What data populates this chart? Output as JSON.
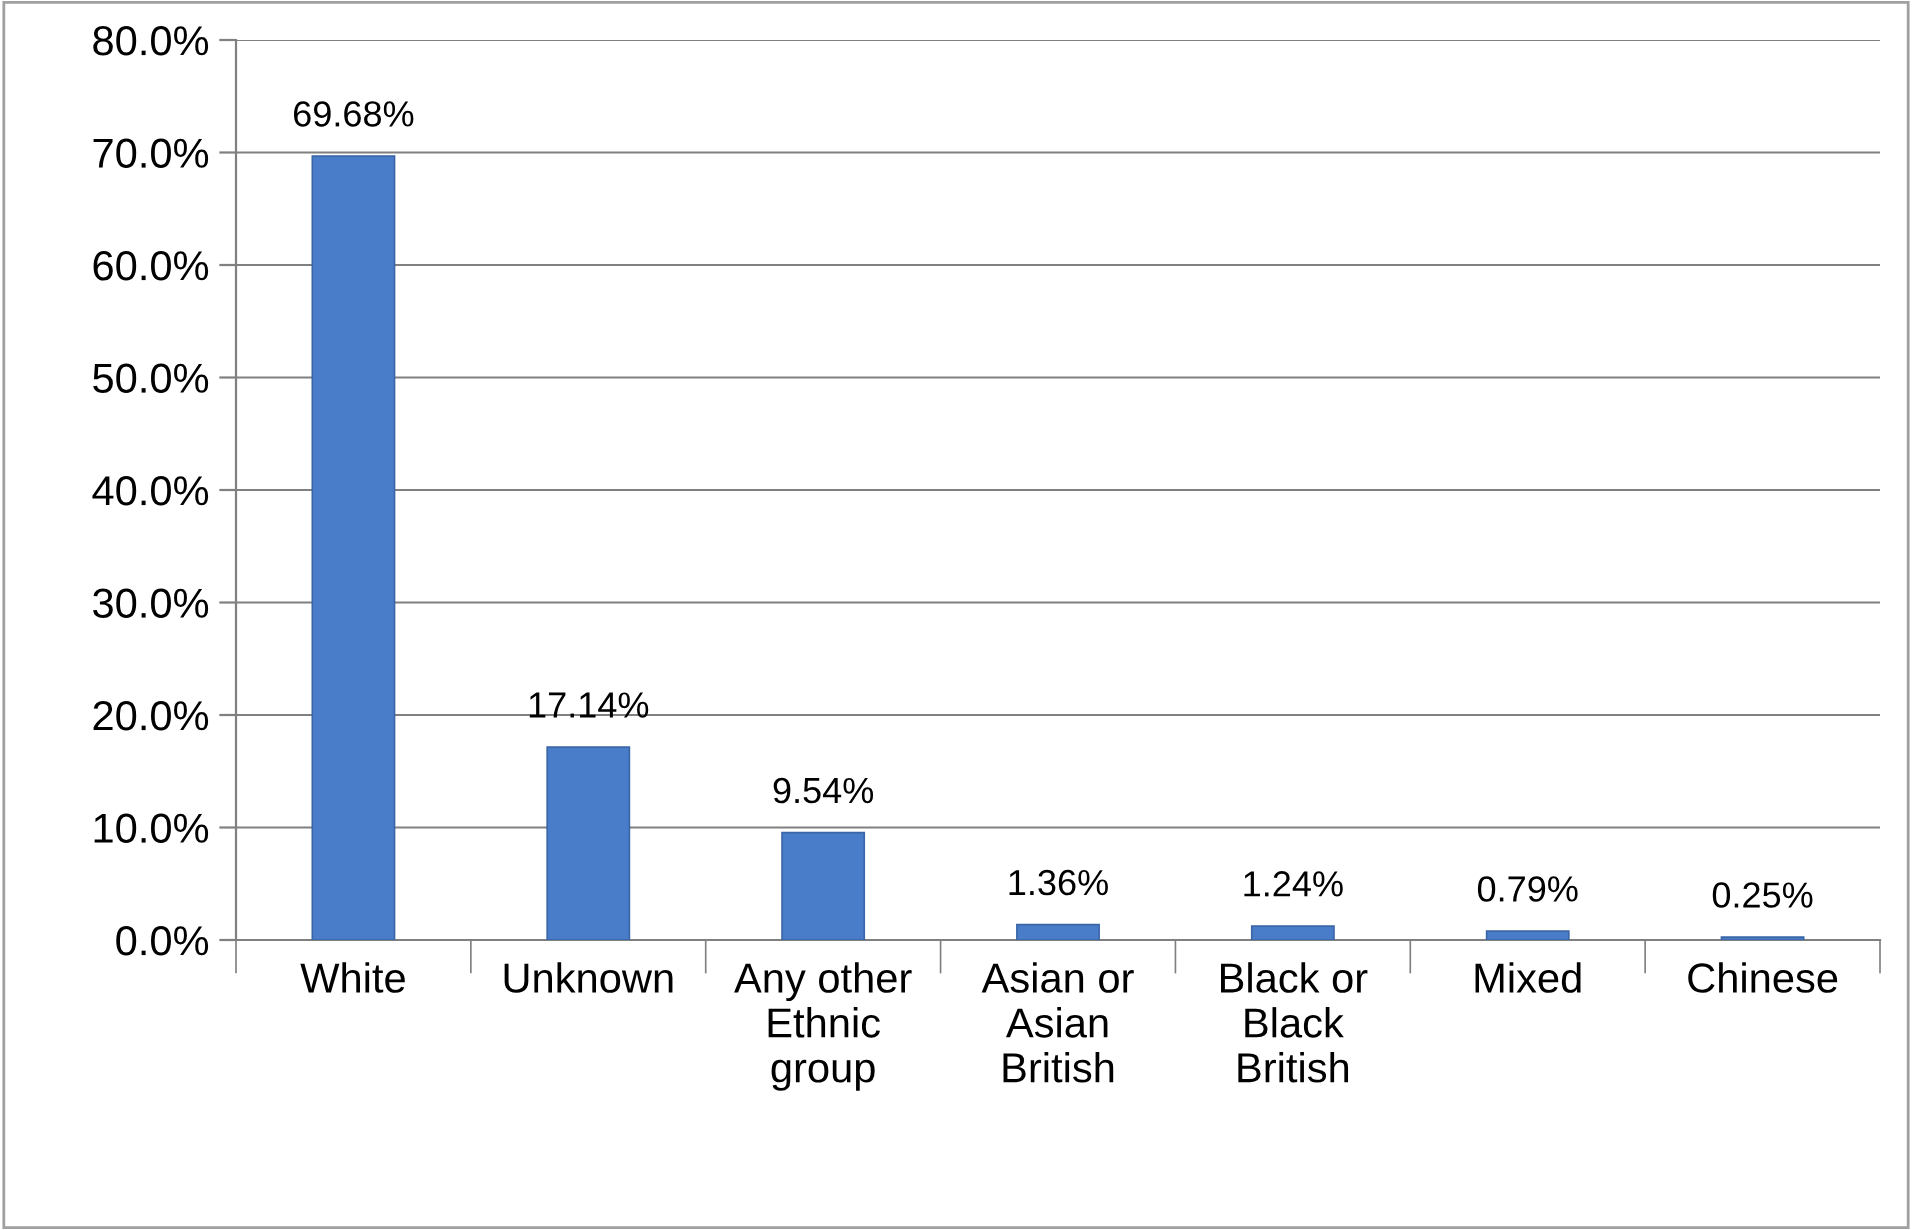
{
  "chart_data": {
    "type": "bar",
    "categories": [
      "White",
      "Unknown",
      "Any other\nEthnic\ngroup",
      "Asian or\nAsian\nBritish",
      "Black or\nBlack\nBritish",
      "Mixed",
      "Chinese"
    ],
    "values": [
      69.68,
      17.14,
      9.54,
      1.36,
      1.24,
      0.79,
      0.25
    ],
    "value_labels": [
      "69.68%",
      "17.14%",
      "9.54%",
      "1.36%",
      "1.24%",
      "0.79%",
      "0.25%"
    ],
    "color": "#4a7dc9",
    "ylim": [
      0,
      80
    ],
    "yticks": [
      {
        "value": 0,
        "label": "0.0%"
      },
      {
        "value": 10,
        "label": "10.0%"
      },
      {
        "value": 20,
        "label": "20.0%"
      },
      {
        "value": 30,
        "label": "30.0%"
      },
      {
        "value": 40,
        "label": "40.0%"
      },
      {
        "value": 50,
        "label": "50.0%"
      },
      {
        "value": 60,
        "label": "60.0%"
      },
      {
        "value": 70,
        "label": "70.0%"
      },
      {
        "value": 80,
        "label": "80.0%"
      }
    ],
    "grid": "y"
  }
}
